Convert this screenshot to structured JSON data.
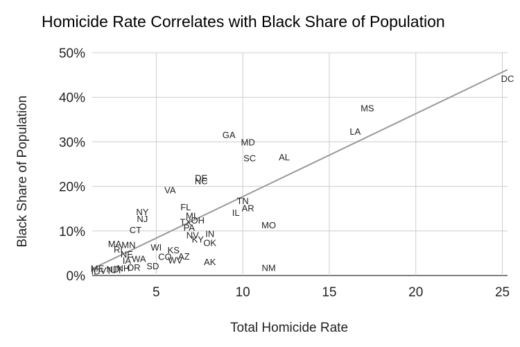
{
  "chart_data": {
    "type": "scatter",
    "title": "Homicide Rate Correlates with Black Share of Population",
    "xlabel": "Total Homicide Rate",
    "ylabel": "Black Share of Population",
    "xlim": [
      1.3,
      25.3
    ],
    "ylim": [
      0,
      50
    ],
    "xticks": [
      5,
      10,
      15,
      20,
      25
    ],
    "yticks": [
      0,
      10,
      20,
      30,
      40,
      50
    ],
    "yticklabels": [
      "0%",
      "10%",
      "20%",
      "30%",
      "40%",
      "50%"
    ],
    "grid": true,
    "trendline": {
      "type": "linear",
      "x": [
        1.3,
        25.3
      ],
      "y": [
        1.5,
        46.2
      ]
    },
    "points": [
      {
        "label": "DC",
        "x": 25.3,
        "y": 44.2
      },
      {
        "label": "MS",
        "x": 17.2,
        "y": 37.6
      },
      {
        "label": "LA",
        "x": 16.5,
        "y": 32.4
      },
      {
        "label": "GA",
        "x": 9.2,
        "y": 31.6
      },
      {
        "label": "MD",
        "x": 10.3,
        "y": 30.0
      },
      {
        "label": "SC",
        "x": 10.4,
        "y": 26.4
      },
      {
        "label": "AL",
        "x": 12.4,
        "y": 26.6
      },
      {
        "label": "DE",
        "x": 7.6,
        "y": 22.0
      },
      {
        "label": "NC",
        "x": 7.6,
        "y": 21.3
      },
      {
        "label": "VA",
        "x": 5.8,
        "y": 19.2
      },
      {
        "label": "TN",
        "x": 10.0,
        "y": 16.8
      },
      {
        "label": "AR",
        "x": 10.3,
        "y": 15.2
      },
      {
        "label": "FL",
        "x": 6.7,
        "y": 15.4
      },
      {
        "label": "IL",
        "x": 9.6,
        "y": 14.2
      },
      {
        "label": "MI",
        "x": 7.0,
        "y": 13.5
      },
      {
        "label": "TX",
        "x": 6.7,
        "y": 12.1
      },
      {
        "label": "OH",
        "x": 7.4,
        "y": 12.5
      },
      {
        "label": "MO",
        "x": 11.5,
        "y": 11.4
      },
      {
        "label": "PA",
        "x": 6.9,
        "y": 10.8
      },
      {
        "label": "NY",
        "x": 4.2,
        "y": 14.3
      },
      {
        "label": "NJ",
        "x": 4.2,
        "y": 12.8
      },
      {
        "label": "CT",
        "x": 3.8,
        "y": 10.3
      },
      {
        "label": "IN",
        "x": 8.1,
        "y": 9.4
      },
      {
        "label": "NV",
        "x": 7.1,
        "y": 9.1
      },
      {
        "label": "KY",
        "x": 7.4,
        "y": 8.2
      },
      {
        "label": "OK",
        "x": 8.1,
        "y": 7.4
      },
      {
        "label": "MA",
        "x": 2.6,
        "y": 7.2
      },
      {
        "label": "MN",
        "x": 3.4,
        "y": 6.9
      },
      {
        "label": "RI",
        "x": 2.8,
        "y": 5.9
      },
      {
        "label": "WI",
        "x": 5.0,
        "y": 6.4
      },
      {
        "label": "KS",
        "x": 6.0,
        "y": 5.8
      },
      {
        "label": "NE",
        "x": 3.3,
        "y": 4.8
      },
      {
        "label": "CO",
        "x": 5.5,
        "y": 4.3
      },
      {
        "label": "AZ",
        "x": 6.6,
        "y": 4.4
      },
      {
        "label": "WV",
        "x": 6.1,
        "y": 3.5
      },
      {
        "label": "WA",
        "x": 4.0,
        "y": 3.8
      },
      {
        "label": "IA",
        "x": 3.3,
        "y": 3.4
      },
      {
        "label": "AK",
        "x": 8.1,
        "y": 3.1
      },
      {
        "label": "SD",
        "x": 4.8,
        "y": 2.2
      },
      {
        "label": "OR",
        "x": 3.7,
        "y": 1.9
      },
      {
        "label": "NH",
        "x": 3.1,
        "y": 1.7
      },
      {
        "label": "NM",
        "x": 11.5,
        "y": 1.8
      },
      {
        "label": "UT",
        "x": 2.7,
        "y": 1.3
      },
      {
        "label": "VT",
        "x": 2.1,
        "y": 1.2
      },
      {
        "label": "ME",
        "x": 1.6,
        "y": 1.6
      },
      {
        "label": "ND",
        "x": 2.5,
        "y": 1.5
      },
      {
        "label": "ID",
        "x": 1.5,
        "y": 1.0
      }
    ]
  }
}
